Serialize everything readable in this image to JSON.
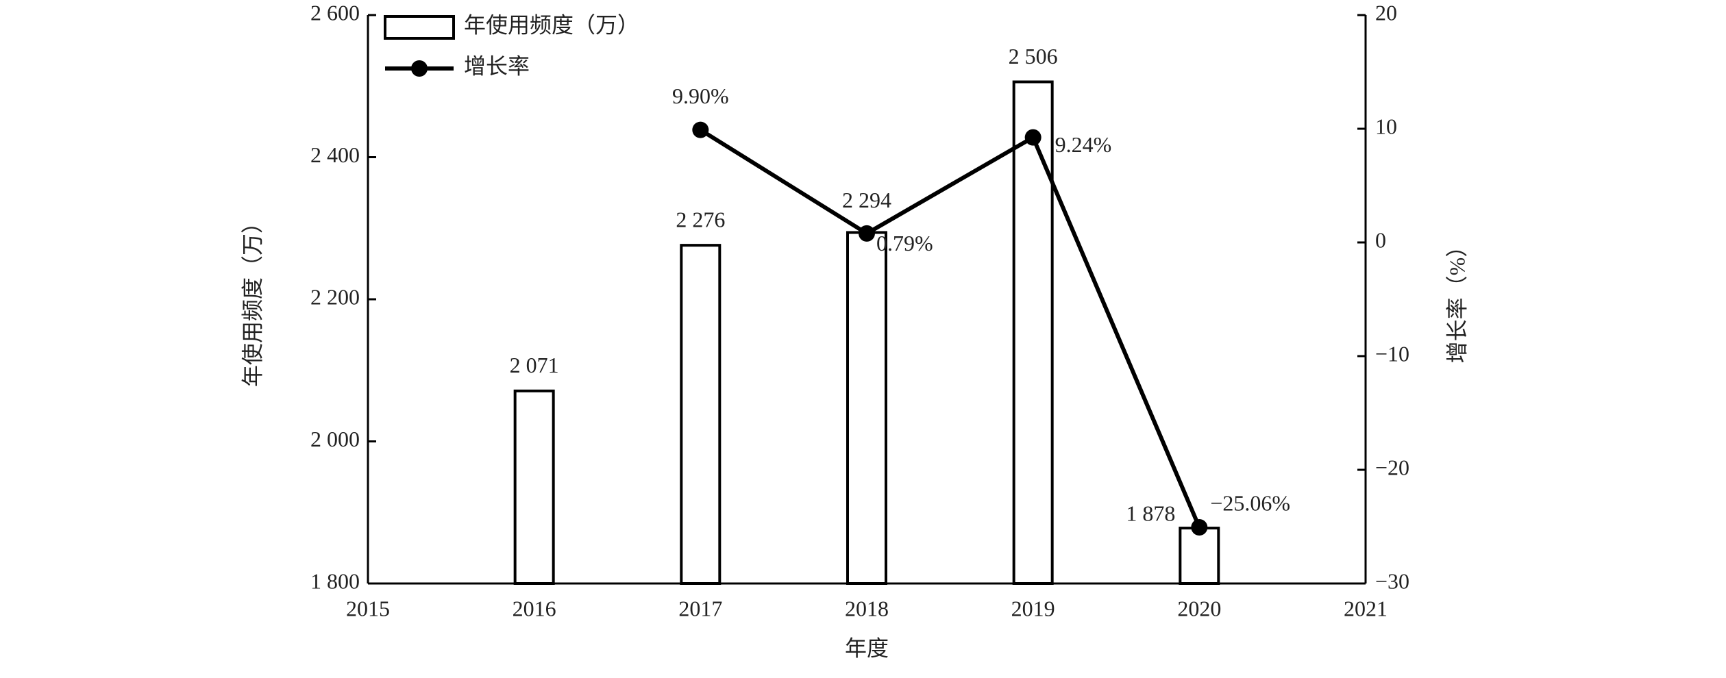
{
  "chart_data": {
    "type": "bar",
    "x": [
      2016,
      2017,
      2018,
      2019,
      2020
    ],
    "xlim": [
      2015,
      2021
    ],
    "xticks": [
      2015,
      2016,
      2017,
      2018,
      2019,
      2020,
      2021
    ],
    "xlabel": "年度",
    "ylabel": "年使用频度（万）",
    "y2label": "增长率（%）",
    "ylim": [
      1800,
      2600
    ],
    "yticks": [
      {
        "value": 1800,
        "label": "1 800"
      },
      {
        "value": 2000,
        "label": "2 000"
      },
      {
        "value": 2200,
        "label": "2 200"
      },
      {
        "value": 2400,
        "label": "2 400"
      },
      {
        "value": 2600,
        "label": "2 600"
      }
    ],
    "y2lim": [
      -30,
      20
    ],
    "y2ticks": [
      {
        "value": -30,
        "label": "−30"
      },
      {
        "value": -20,
        "label": "−20"
      },
      {
        "value": -10,
        "label": "−10"
      },
      0,
      10,
      20
    ],
    "legend": "upper left",
    "series": [
      {
        "name": "年使用频度（万）",
        "type": "bar",
        "color": "#ffffff",
        "values": [
          2071,
          2276,
          2294,
          2506,
          1878
        ],
        "value_labels": [
          "2 071",
          "2 276",
          "2 294",
          "2 506",
          "1 878"
        ]
      },
      {
        "name": "增长率",
        "type": "line",
        "axis": "y2",
        "color": "#000000",
        "values": [
          null,
          9.9,
          0.79,
          9.24,
          -25.06
        ],
        "value_labels": [
          null,
          "9.90%",
          "0.79%",
          "9.24%",
          "−25.06%"
        ]
      }
    ]
  }
}
